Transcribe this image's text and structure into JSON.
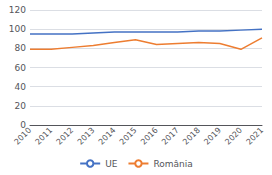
{
  "chart_data": {
    "type": "line",
    "categories": [
      "2010",
      "2011",
      "2012",
      "2013",
      "2014",
      "2015",
      "2016",
      "2017",
      "2018",
      "2019",
      "2020",
      "2021"
    ],
    "series": [
      {
        "name": "UE",
        "color": "#4472C4",
        "values": [
          95,
          95,
          95,
          96,
          97,
          97,
          97,
          97,
          98,
          98,
          99,
          100
        ]
      },
      {
        "name": "România",
        "color": "#ED7D31",
        "values": [
          79,
          79,
          81,
          83,
          86,
          89,
          84,
          85,
          86,
          85,
          79,
          91
        ]
      }
    ],
    "ylim": [
      0,
      120
    ],
    "yticks": [
      0,
      20,
      40,
      60,
      80,
      100,
      120
    ],
    "grid": true,
    "legend": "bottom"
  }
}
